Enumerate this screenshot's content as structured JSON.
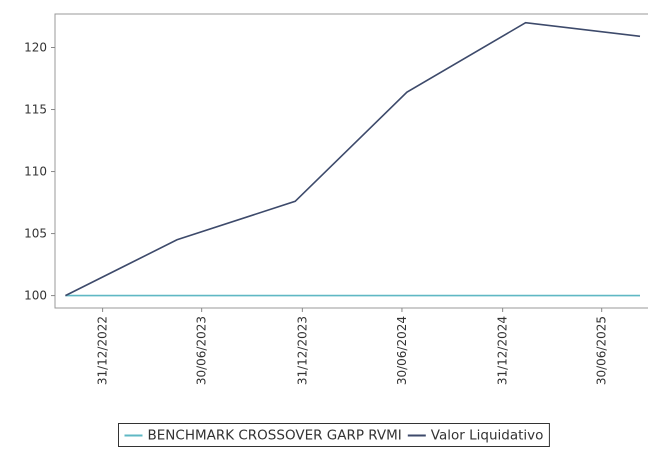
{
  "chart_data": {
    "type": "line",
    "x": [
      "2022-10-24",
      "2023-05-16",
      "2023-12-18",
      "2024-07-09",
      "2025-02-11",
      "2025-09-08"
    ],
    "series": [
      {
        "name": "BENCHMARK CROSSOVER GARP RVMI",
        "color": "#5fb8c4",
        "values": [
          100,
          100,
          100,
          100,
          100,
          100
        ]
      },
      {
        "name": "Valor Liquidativo",
        "color": "#3d4a6b",
        "values": [
          100,
          104.5,
          107.6,
          116.4,
          122,
          120.9
        ]
      }
    ],
    "xlim": [
      "2022-10-05",
      "2025-09-08"
    ],
    "xticks": [
      {
        "value": "2022-12-31",
        "label": "31/12/2022"
      },
      {
        "value": "2023-06-30",
        "label": "30/06/2023"
      },
      {
        "value": "2023-12-31",
        "label": "31/12/2023"
      },
      {
        "value": "2024-06-30",
        "label": "30/06/2024"
      },
      {
        "value": "2024-12-31",
        "label": "31/12/2024"
      },
      {
        "value": "2025-06-30",
        "label": "30/06/2025"
      }
    ],
    "ylim": [
      99,
      122.7
    ],
    "yticks": [
      100,
      105,
      110,
      115,
      120
    ],
    "legend": "bottom"
  }
}
